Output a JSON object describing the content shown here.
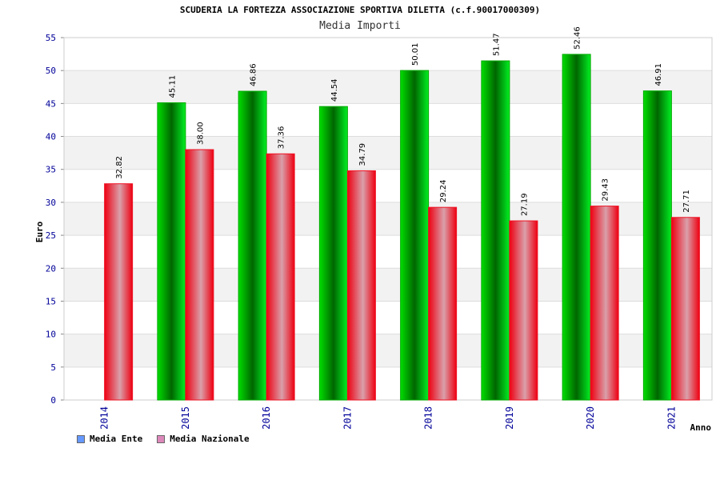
{
  "chart_data": {
    "type": "bar",
    "title": "SCUDERIA LA FORTEZZA ASSOCIAZIONE SPORTIVA DILETTA (c.f.90017000309)",
    "subtitle": "Media Importi",
    "xlabel": "Anno",
    "ylabel": "Euro",
    "ylim": [
      0,
      55
    ],
    "yticks": [
      0,
      5,
      10,
      15,
      20,
      25,
      30,
      35,
      40,
      45,
      50,
      55
    ],
    "categories": [
      "2014",
      "2015",
      "2016",
      "2017",
      "2018",
      "2019",
      "2020",
      "2021"
    ],
    "series": [
      {
        "name": "Media Ente",
        "values": [
          null,
          45.11,
          46.86,
          44.54,
          50.01,
          51.47,
          52.46,
          46.91
        ],
        "labels": [
          "",
          "45.11",
          "46.86",
          "44.54",
          "50.01",
          "51.47",
          "52.46",
          "46.91"
        ]
      },
      {
        "name": "Media Nazionale",
        "values": [
          32.82,
          38.0,
          37.36,
          34.79,
          29.24,
          27.19,
          29.43,
          27.71
        ],
        "labels": [
          "32.82",
          "38.00",
          "37.36",
          "34.79",
          "29.24",
          "27.19",
          "29.43",
          "27.71"
        ]
      }
    ],
    "legend_position": "bottom-left",
    "grid": "horizontal-bands"
  },
  "legend": [
    {
      "label": "Media Ente",
      "color": "#6699ff"
    },
    {
      "label": "Media Nazionale",
      "color": "#dd88bb"
    }
  ],
  "colors": {
    "ente_dark": "#006600",
    "ente_light": "#00ee00",
    "naz_edge": "#ee0011",
    "naz_mid": "#d99aa6",
    "tick_text": "#000099",
    "band": "#f2f2f2"
  }
}
